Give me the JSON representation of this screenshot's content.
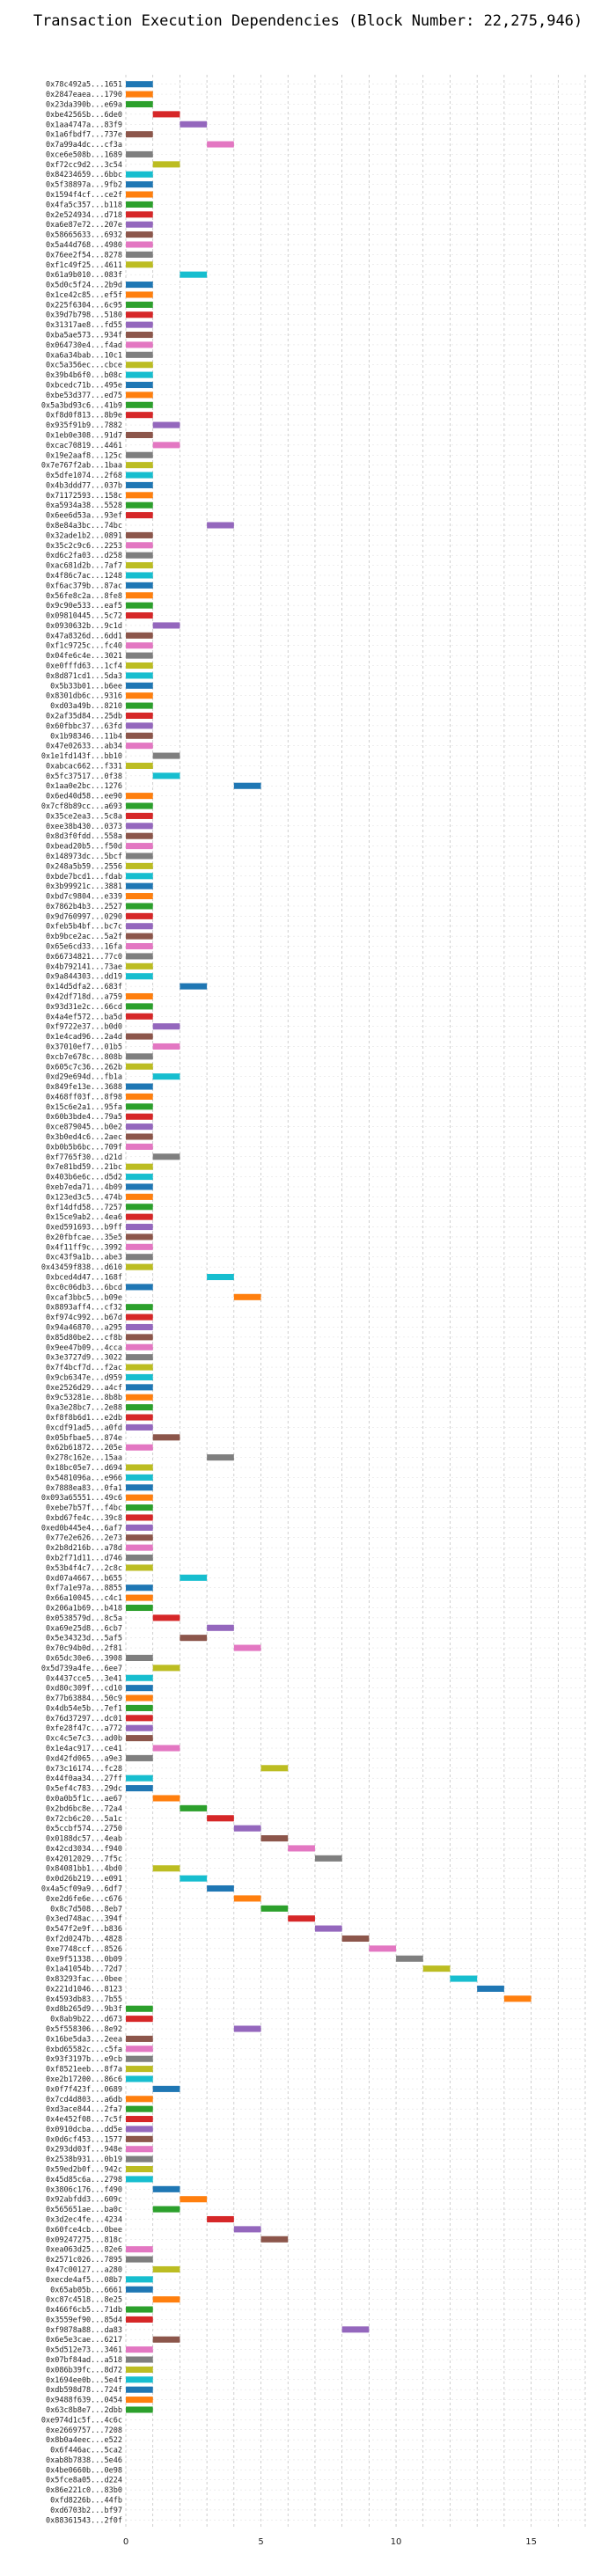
{
  "chart_data": {
    "type": "bar",
    "orientation": "horizontal-gantt",
    "title": "Transaction Execution Dependencies (Block Number: 22,275,946)",
    "xlabel": "",
    "ylabel": "",
    "xlim": [
      0,
      17
    ],
    "x_ticks": [
      0,
      5,
      10,
      15
    ],
    "grid": true,
    "palette": [
      "#1f77b4",
      "#ff7f0e",
      "#2ca02c",
      "#d62728",
      "#9467bd",
      "#8c564b",
      "#e377c2",
      "#7f7f7f",
      "#bcbd22",
      "#17becf"
    ],
    "categories": [
      "0x78c492a5...1651",
      "0x2847eaea...1790",
      "0x23da390b...e69a",
      "0xbe4256Sb...6de0",
      "0x1aa4747a...83f9",
      "0x1a6fbdf7...737e",
      "0x7a99a4dc...cf3a",
      "0xce6e508b...1689",
      "0xf72cc9d2...3c54",
      "0x84234659...6bbc",
      "0x5f38897a...9fb2",
      "0x1594f4cf...ce2f",
      "0x4fa5c357...b118",
      "0x2e524934...d718",
      "0xa6e87e72...207e",
      "0x58665633...6932",
      "0x5a44d768...4980",
      "0x76ee2f54...8278",
      "0xf1c49f25...4611",
      "0x61a9b010...083f",
      "0x5d0c5f24...2b9d",
      "0x1ce42c85...ef5f",
      "0x225f6304...6c95",
      "0x39d7b798...5180",
      "0x31317ae8...fd55",
      "0xba5ae573...934f",
      "0x064730e4...f4ad",
      "0xa6a34bab...10c1",
      "0xc5a356ec...cbce",
      "0x39b4b6f0...b08c",
      "0xbcedc71b...495e",
      "0xbe53d377...ed75",
      "0x5a3bd93c6...41b9",
      "0xf8d0f813...8b9e",
      "0x935f91b9...7882",
      "0x1eb0e308...91d7",
      "0xcac70819...4461",
      "0x19e2aaf8...125c",
      "0x7e767f2ab...1baa",
      "0x5dfe1074...2f68",
      "0x4b3ddd77...037b",
      "0x71172593...158c",
      "0xa5934a38...5528",
      "0x6ee6d53a...93ef",
      "0x8e84a3bc...74bc",
      "0x32ade1b2...0891",
      "0x35c2c9c6...2253",
      "0xd6c2fa03...d258",
      "0xac681d2b...7af7",
      "0x4f86c7ac...1248",
      "0xf6ac379b...87ac",
      "0x56fe8c2a...8fe8",
      "0x9c90e533...eaf5",
      "0x09810445...5c72",
      "0x0930632b...9c1d",
      "0x47a8326d...6dd1",
      "0xf1c9725c...fc40",
      "0x04fe6c4e...3021",
      "0xe0fffd63...1cf4",
      "0x8d871cd1...5da3",
      "0x5b33b01...b6ee",
      "0x8301db6c...9316",
      "0xd03a49b...8210",
      "0x2af35d84...25db",
      "0x60fbbc37...63fd",
      "0x1b98346...11b4",
      "0x47e02633...ab34",
      "0x1e1fd143f...bb10",
      "0xabcac662...f331",
      "0x5fc37517...0f38",
      "0x1aa0e2bc...1276",
      "0x6ed40d58...ee90",
      "0x7cf8b89cc...a693",
      "0x35ce2ea3...5c8a",
      "0xee38b430...0373",
      "0x8d3f0fdd...558a",
      "0xbead20b5...f50d",
      "0x148973dc...5bcf",
      "0x248a5b59...2556",
      "0xbde7bcd1...fdab",
      "0x3b99921c...3881",
      "0xbd7c9804...e339",
      "0x7862b4b3...2527",
      "0x9d760997...0290",
      "0xfeb5b4bf...bc7c",
      "0xb9bce2ac...5a2f",
      "0x65e6cd33...16fa",
      "0x66734821...77c0",
      "0x4b792141...73ae",
      "0x9a844303...dd19",
      "0x14d5dfa2...683f",
      "0x42df718d...a759",
      "0x93d31e2c...66cd",
      "0x4a4ef572...ba5d",
      "0xf9722e37...b0d0",
      "0x1e4cad96...2a4d",
      "0x37010ef7...01b5",
      "0xcb7e678c...808b",
      "0x605c7c36...262b",
      "0xd29e694d...fb1a",
      "0x849fe13e...3688",
      "0x468ff03f...8f98",
      "0x15c6e2a1...95fa",
      "0x60b3bde4...79a5",
      "0xce879045...b0e2",
      "0x3b0ed4c6...2aec",
      "0xb0b5b6bc...709f",
      "0xf7765f30...d21d",
      "0x7e81bd59...21bc",
      "0x403b6e6c...d5d2",
      "0xeb7eda71...4b09",
      "0x123ed3c5...474b",
      "0xf14dfd58...7257",
      "0x15ce9ab2...4ea6",
      "0xed591693...b9ff",
      "0x20fbfcae...35e5",
      "0x4f11ff9c...3992",
      "0xc43f9a1b...abe3",
      "0x43459f838...d610",
      "0xbced4d47...168f",
      "0xc0c06db3...6bcd",
      "0xcaf3bbc5...b09e",
      "0x8893aff4...cf32",
      "0xf974c992...b67d",
      "0x94a46870...a295",
      "0x85d80be2...cf8b",
      "0x9ee47b09...4cca",
      "0x3e3727d9...3022",
      "0x7f4bcf7d...f2ac",
      "0x9cb6347e...d959",
      "0xe2526d29...a4cf",
      "0x9c53281e...8b8b",
      "0xa3e28bc7...2e88",
      "0xf8f8b6d1...e2db",
      "0xcdf91ad5...a0fd",
      "0x05bfbae5...874e",
      "0x62b61872...205e",
      "0x278c162e...15aa",
      "0x18bc05e7...d694",
      "0x5481096a...e966",
      "0x7888ea83...0fa1",
      "0x093a65551...49c6",
      "0xebe7b57f...f4bc",
      "0xbd67fe4c...39c8",
      "0xed0b445e4...6af7",
      "0x77e2e626...2e73",
      "0x2b8d216b...a78d",
      "0xb2f71d11...d746",
      "0x53b4f4c7...2c8c",
      "0xd07a4667...b655",
      "0xf7a1e97a...8855",
      "0x66a10045...c4c1",
      "0x206a1b69...b418",
      "0x0538579d...8c5a",
      "0xa69e25d8...6cb7",
      "0x5e34323d...5af5",
      "0x70c94b0d...2f81",
      "0x65dc30e6...3908",
      "0x5d739a4fe...6ee7",
      "0x4437cce5...3e41",
      "0xd80c309f...cd10",
      "0x77b63884...50c9",
      "0x4db54e5b...7ef1",
      "0x76d37297...dc01",
      "0xfe28f47c...a772",
      "0xc4c5e7c3...ad0b",
      "0x1e4ac917...ce41",
      "0xd42fd065...a9e3",
      "0x73c16174...fc28",
      "0x44f0aa34...27ff",
      "0x5ef4c783...29dc",
      "0x0a0b5f1c...ae67",
      "0x2bd6bc8e...72a4",
      "0x72cb6c20...5a1c",
      "0x5ccbf574...2750",
      "0x0188dc57...4eab",
      "0x42cd3034...f940",
      "0x42012029...7f5c",
      "0x84081bb1...4bd0",
      "0x0d26b219...e091",
      "0x4a5cf09a9...6df7",
      "0xe2d6fe6e...c676",
      "0x8c7d508...8eb7",
      "0x3ed748ac...394f",
      "0x547f2e9f...b836",
      "0xf2d0247b...4828",
      "0xe7748ccf...8526",
      "0xe9f51338...0b09",
      "0x1a41054b...72d7",
      "0x83293fac...0bee",
      "0x221d1046...8123",
      "0x4593db83...7b55",
      "0xd8b265d9...9b3f",
      "0x8ab9b22...d673",
      "0x5f558306...8e92",
      "0x16be5da3...2eea",
      "0xbd65582c...c5fa",
      "0x93f3197b...e9cb",
      "0xf8521eeb...8f7a",
      "0xe2b17200...86c6",
      "0x0f7f423f...0689",
      "0x7cd4d803...a6db",
      "0xd3ace844...2fa7",
      "0x4e452f08...7c5f",
      "0x0910dcba...dd5e",
      "0x0d6cf453...1577",
      "0x293dd03f...948e",
      "0x2538b931...0b19",
      "0x59ed2b0f...942c",
      "0x45d85c6a...2798",
      "0x3806c176...f490",
      "0x92abfdd3...609c",
      "0x565651ae...ba0c",
      "0x3d2ec4fe...4234",
      "0x60fce4cb...0bee",
      "0x09247275...818c",
      "0xea063d25...82e6",
      "0x2571c026...7895",
      "0x47c00127...a280",
      "0xecde4af5...08b7",
      "0x65ab05b...6661",
      "0xc87c4518...8e25",
      "0x466f6cb5...71db",
      "0x3559ef90...85d4",
      "0xf9878a88...da83",
      "0x6e5e3cae...6217",
      "0x5d512e73...3461",
      "0x07bf84ad...a518",
      "0x086b39fc...8d72",
      "0x1694ee0b...5e4f",
      "0xdb598d78...724f",
      "0x9488f639...0454",
      "0x63c8b8e7...2dbb",
      "0xe974d1c5f...4c6c",
      "0xe2669757...7208",
      "0x8b0a4eec...e522",
      "0x6f446ac...5ca2",
      "0xab8b7838...5e46",
      "0x4be0660b...0e98",
      "0x5fce8a05...d224",
      "0x86e221c0...83b0",
      "0xfd8226b...44fb",
      "0xd6703b2...bf97",
      "0x88361543...2f0f"
    ],
    "start": [
      0,
      0,
      0,
      1,
      2,
      0,
      3,
      0,
      1,
      0,
      0,
      0,
      0,
      0,
      0,
      0,
      0,
      0,
      0,
      2,
      0,
      0,
      0,
      0,
      0,
      0,
      0,
      0,
      0,
      0,
      0,
      0,
      0,
      0,
      1,
      0,
      1,
      0,
      0,
      0,
      0,
      0,
      0,
      0,
      3,
      0,
      0,
      0,
      0,
      0,
      0,
      0,
      0,
      0,
      1,
      0,
      0,
      0,
      0,
      0,
      0,
      0,
      0,
      0,
      0,
      0,
      0,
      1,
      0,
      1,
      4,
      0,
      0,
      0,
      0,
      0,
      0,
      0,
      0,
      0,
      0,
      0,
      0,
      0,
      0,
      0,
      0,
      0,
      0,
      0,
      2,
      0,
      0,
      0,
      1,
      0,
      1,
      0,
      0,
      1,
      0,
      0,
      0,
      0,
      0,
      0,
      0,
      1,
      0,
      0,
      0,
      0,
      0,
      0,
      0,
      0,
      0,
      0,
      0,
      3,
      0,
      4,
      0,
      0,
      0,
      0,
      0,
      0,
      0,
      0,
      0,
      0,
      0,
      0,
      0,
      1,
      0,
      3,
      0,
      0,
      0,
      0,
      0,
      0,
      0,
      0,
      0,
      0,
      0,
      2,
      0,
      0,
      0,
      1,
      3,
      2,
      4,
      0,
      1,
      0,
      0,
      0,
      0,
      0,
      0,
      0,
      1,
      0,
      5,
      0,
      0,
      1,
      2,
      3,
      4,
      5,
      6,
      7,
      1,
      2,
      3,
      4,
      5,
      6,
      7,
      8,
      9,
      10,
      11,
      12,
      13,
      14,
      0,
      0,
      4,
      0,
      0,
      0,
      0,
      0,
      1,
      0,
      0,
      0,
      0,
      0,
      0,
      0,
      0,
      0,
      1,
      2,
      1,
      3,
      4,
      5,
      0,
      0,
      1,
      0,
      0,
      1,
      0,
      0,
      8,
      1,
      0,
      0,
      0,
      0,
      0,
      0,
      0
    ],
    "duration": [
      1,
      1,
      1,
      1,
      1,
      1,
      1,
      1,
      1,
      1,
      1,
      1,
      1,
      1,
      1,
      1,
      1,
      1,
      1,
      1,
      1,
      1,
      1,
      1,
      1,
      1,
      1,
      1,
      1,
      1,
      1,
      1,
      1,
      1,
      1,
      1,
      1,
      1,
      1,
      1,
      1,
      1,
      1,
      1,
      1,
      1,
      1,
      1,
      1,
      1,
      1,
      1,
      1,
      1,
      1,
      1,
      1,
      1,
      1,
      1,
      1,
      1,
      1,
      1,
      1,
      1,
      1,
      1,
      1,
      1,
      1,
      1,
      1,
      1,
      1,
      1,
      1,
      1,
      1,
      1,
      1,
      1,
      1,
      1,
      1,
      1,
      1,
      1,
      1,
      1,
      1,
      1,
      1,
      1,
      1,
      1,
      1,
      1,
      1,
      1,
      1,
      1,
      1,
      1,
      1,
      1,
      1,
      1,
      1,
      1,
      1,
      1,
      1,
      1,
      1,
      1,
      1,
      1,
      1,
      1,
      1,
      1,
      1,
      1,
      1,
      1,
      1,
      1,
      1,
      1,
      1,
      1,
      1,
      1,
      1,
      1,
      1,
      1,
      1,
      1,
      1,
      1,
      1,
      1,
      1,
      1,
      1,
      1,
      1,
      1,
      1,
      1,
      1,
      1,
      1,
      1,
      1,
      1,
      1,
      1,
      1,
      1,
      1,
      1,
      1,
      1,
      1,
      1,
      1,
      1,
      1,
      1,
      1,
      1,
      1,
      1,
      1,
      1,
      1,
      1,
      1,
      1,
      1,
      1,
      1,
      1,
      1,
      1,
      1,
      1,
      1,
      1,
      1,
      1,
      1,
      1,
      1,
      1,
      1,
      1,
      1,
      1,
      1,
      1,
      1,
      1,
      1,
      1,
      1,
      1,
      1,
      1,
      1,
      1,
      1,
      1,
      1,
      1,
      1,
      1,
      1,
      1,
      1,
      1,
      1,
      1,
      1,
      1,
      1,
      1,
      1,
      1,
      1,
      1
    ]
  }
}
